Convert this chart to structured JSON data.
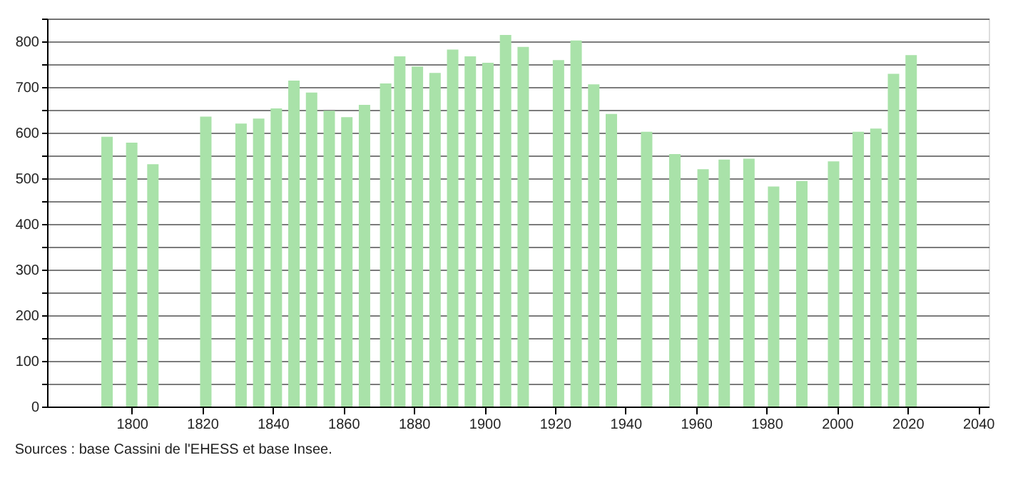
{
  "chart_data": {
    "type": "bar",
    "x": [
      1793,
      1800,
      1806,
      1821,
      1831,
      1836,
      1841,
      1846,
      1851,
      1856,
      1861,
      1866,
      1872,
      1876,
      1881,
      1886,
      1891,
      1896,
      1901,
      1906,
      1911,
      1921,
      1926,
      1931,
      1936,
      1946,
      1954,
      1962,
      1968,
      1975,
      1982,
      1990,
      1999,
      2006,
      2011,
      2016,
      2021
    ],
    "values": [
      591,
      578,
      531,
      635,
      620,
      631,
      653,
      714,
      688,
      648,
      634,
      661,
      708,
      767,
      745,
      731,
      782,
      767,
      753,
      814,
      788,
      759,
      802,
      706,
      641,
      602,
      553,
      520,
      541,
      543,
      482,
      494,
      537,
      602,
      609,
      729,
      770
    ],
    "color": "#a9e2a9",
    "xlim": [
      1776,
      2043
    ],
    "xticks": [
      1800,
      1820,
      1840,
      1860,
      1880,
      1900,
      1920,
      1940,
      1960,
      1980,
      2000,
      2020,
      2040
    ],
    "ylim": [
      0,
      850
    ],
    "yticks": [
      0,
      {
        "value": 50,
        "label": null
      },
      100,
      {
        "value": 150,
        "label": null
      },
      200,
      {
        "value": 250,
        "label": null
      },
      300,
      {
        "value": 350,
        "label": null
      },
      400,
      {
        "value": 450,
        "label": null
      },
      500,
      {
        "value": 550,
        "label": null
      },
      600,
      {
        "value": 650,
        "label": null
      },
      700,
      {
        "value": 750,
        "label": null
      },
      800,
      {
        "value": 850,
        "label": null
      }
    ],
    "grid": "y",
    "annotations": [
      "Sources : base Cassini de l'EHESS et base Insee."
    ]
  }
}
